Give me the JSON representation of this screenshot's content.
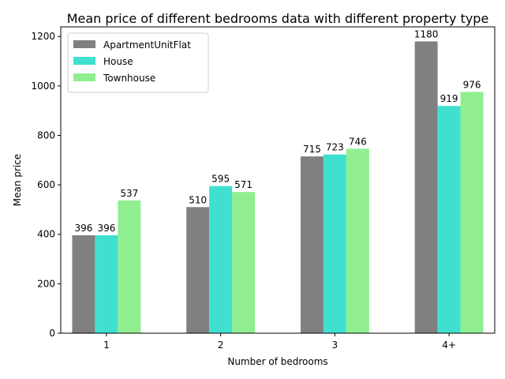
{
  "chart_data": {
    "type": "bar",
    "title": "Mean price of different bedrooms data with different property type",
    "xlabel": "Number of bedrooms",
    "ylabel": "Mean price",
    "categories": [
      "1",
      "2",
      "3",
      "4+"
    ],
    "series": [
      {
        "name": "ApartmentUnitFlat",
        "color": "#808080",
        "values": [
          396,
          510,
          715,
          1180
        ]
      },
      {
        "name": "House",
        "color": "#40e0d0",
        "values": [
          396,
          595,
          723,
          919
        ]
      },
      {
        "name": "Townhouse",
        "color": "#90ee90",
        "values": [
          537,
          571,
          746,
          976
        ]
      }
    ],
    "yticks": [
      0,
      200,
      400,
      600,
      800,
      1000,
      1200
    ],
    "ylim": [
      0,
      1239
    ],
    "legend_position": "top-left",
    "grid": false
  }
}
